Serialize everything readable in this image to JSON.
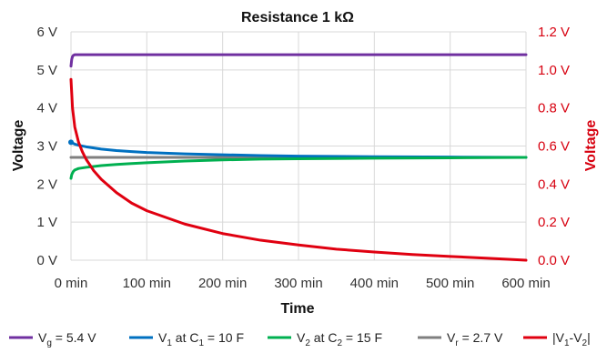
{
  "chart_data": {
    "type": "line",
    "title": "Resistance 1 kΩ",
    "xlabel": "Time",
    "ylabel_left": "Voltage",
    "ylabel_right": "Voltage",
    "xlim": [
      0,
      600
    ],
    "ylim_left": [
      0,
      6
    ],
    "ylim_right": [
      0,
      1.2
    ],
    "x_ticks": [
      "0 min",
      "100 min",
      "200 min",
      "300 min",
      "400 min",
      "500 min",
      "600 min"
    ],
    "y_left_ticks": [
      "0 V",
      "1 V",
      "2 V",
      "3 V",
      "4 V",
      "5 V",
      "6 V"
    ],
    "y_right_ticks": [
      "0.0 V",
      "0.2 V",
      "0.4 V",
      "0.6 V",
      "0.8 V",
      "1.0 V",
      "1.2 V"
    ],
    "grid": true,
    "legend_position": "bottom",
    "series": [
      {
        "name": "Vg = 5.4 V",
        "legend": {
          "base": "V",
          "sub": "g",
          "rest": " = 5.4 V"
        },
        "color": "#7030a0",
        "axis": "left",
        "x": [
          0,
          1,
          2,
          3,
          5,
          600
        ],
        "y": [
          5.1,
          5.28,
          5.35,
          5.38,
          5.4,
          5.4
        ]
      },
      {
        "name": "V1 at C1 = 10 F",
        "legend": {
          "base": "V",
          "sub": "1",
          "rest": " at C",
          "sub2": "1",
          "rest2": " = 10 F"
        },
        "color": "#0070c0",
        "axis": "left",
        "x": [
          0,
          2,
          5,
          10,
          20,
          40,
          60,
          80,
          100,
          150,
          200,
          250,
          300,
          400,
          500,
          600
        ],
        "y": [
          3.1,
          3.08,
          3.05,
          3.02,
          2.98,
          2.92,
          2.88,
          2.855,
          2.83,
          2.795,
          2.77,
          2.75,
          2.735,
          2.72,
          2.71,
          2.7
        ],
        "start_point": {
          "x": 0,
          "y": 3.1
        }
      },
      {
        "name": "V2 at C2 = 15 F",
        "legend": {
          "base": "V",
          "sub": "2",
          "rest": " at C",
          "sub2": "2",
          "rest2": " = 15 F"
        },
        "color": "#00b050",
        "axis": "left",
        "x": [
          0,
          1,
          3,
          5,
          10,
          20,
          40,
          60,
          80,
          100,
          150,
          200,
          250,
          300,
          400,
          500,
          600
        ],
        "y": [
          2.15,
          2.25,
          2.33,
          2.37,
          2.41,
          2.44,
          2.485,
          2.515,
          2.54,
          2.56,
          2.605,
          2.635,
          2.655,
          2.665,
          2.68,
          2.69,
          2.7
        ]
      },
      {
        "name": "Vr = 2.7 V",
        "legend": {
          "base": "V",
          "sub": "r",
          "rest": " = 2.7 V"
        },
        "color": "#7f7f7f",
        "axis": "left",
        "x": [
          0,
          600
        ],
        "y": [
          2.7,
          2.7
        ]
      },
      {
        "name": "|V1-V2|",
        "legend": {
          "base": "|V",
          "sub": "1",
          "rest": "-V",
          "sub2": "2",
          "rest2": "|"
        },
        "color": "#e00010",
        "axis": "right",
        "x": [
          0,
          2,
          5,
          10,
          15,
          20,
          30,
          40,
          60,
          80,
          100,
          150,
          200,
          250,
          300,
          350,
          400,
          450,
          500,
          550,
          600
        ],
        "y": [
          0.95,
          0.8,
          0.7,
          0.62,
          0.57,
          0.53,
          0.47,
          0.425,
          0.355,
          0.3,
          0.26,
          0.19,
          0.14,
          0.105,
          0.08,
          0.058,
          0.043,
          0.03,
          0.02,
          0.01,
          0.0
        ]
      }
    ]
  }
}
